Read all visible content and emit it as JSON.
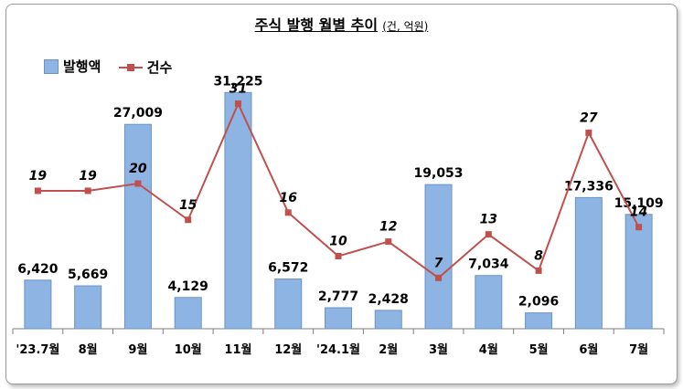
{
  "title": "주식 발행 월별 추이",
  "title_unit": "(건, 억원)",
  "legend": {
    "bar_label": "발행액",
    "line_label": "건수"
  },
  "colors": {
    "bar": "#8db4e2",
    "bar_edge": "#6a93c4",
    "line": "#c0504d"
  },
  "chart_data": {
    "type": "bar",
    "title": "주식 발행 월별 추이",
    "categories": [
      "'23.7월",
      "8월",
      "9월",
      "10월",
      "11월",
      "12월",
      "'24.1월",
      "2월",
      "3월",
      "4월",
      "5월",
      "6월",
      "7월"
    ],
    "series": [
      {
        "name": "발행액",
        "type": "bar",
        "values": [
          6420,
          5669,
          27009,
          4129,
          31225,
          6572,
          2777,
          2428,
          19053,
          7034,
          2096,
          17336,
          15109
        ],
        "labels": [
          "6,420",
          "5,669",
          "27,009",
          "4,129",
          "31,225",
          "6,572",
          "2,777",
          "2,428",
          "19,053",
          "7,034",
          "2,096",
          "17,336",
          "15,109"
        ]
      },
      {
        "name": "건수",
        "type": "line",
        "values": [
          19,
          19,
          20,
          15,
          31,
          16,
          10,
          12,
          7,
          13,
          8,
          27,
          14
        ]
      }
    ],
    "ylim_bars": [
      0,
      35000
    ],
    "ylim_line": [
      0,
      40
    ],
    "legend_position": "top-left",
    "grid": false
  }
}
